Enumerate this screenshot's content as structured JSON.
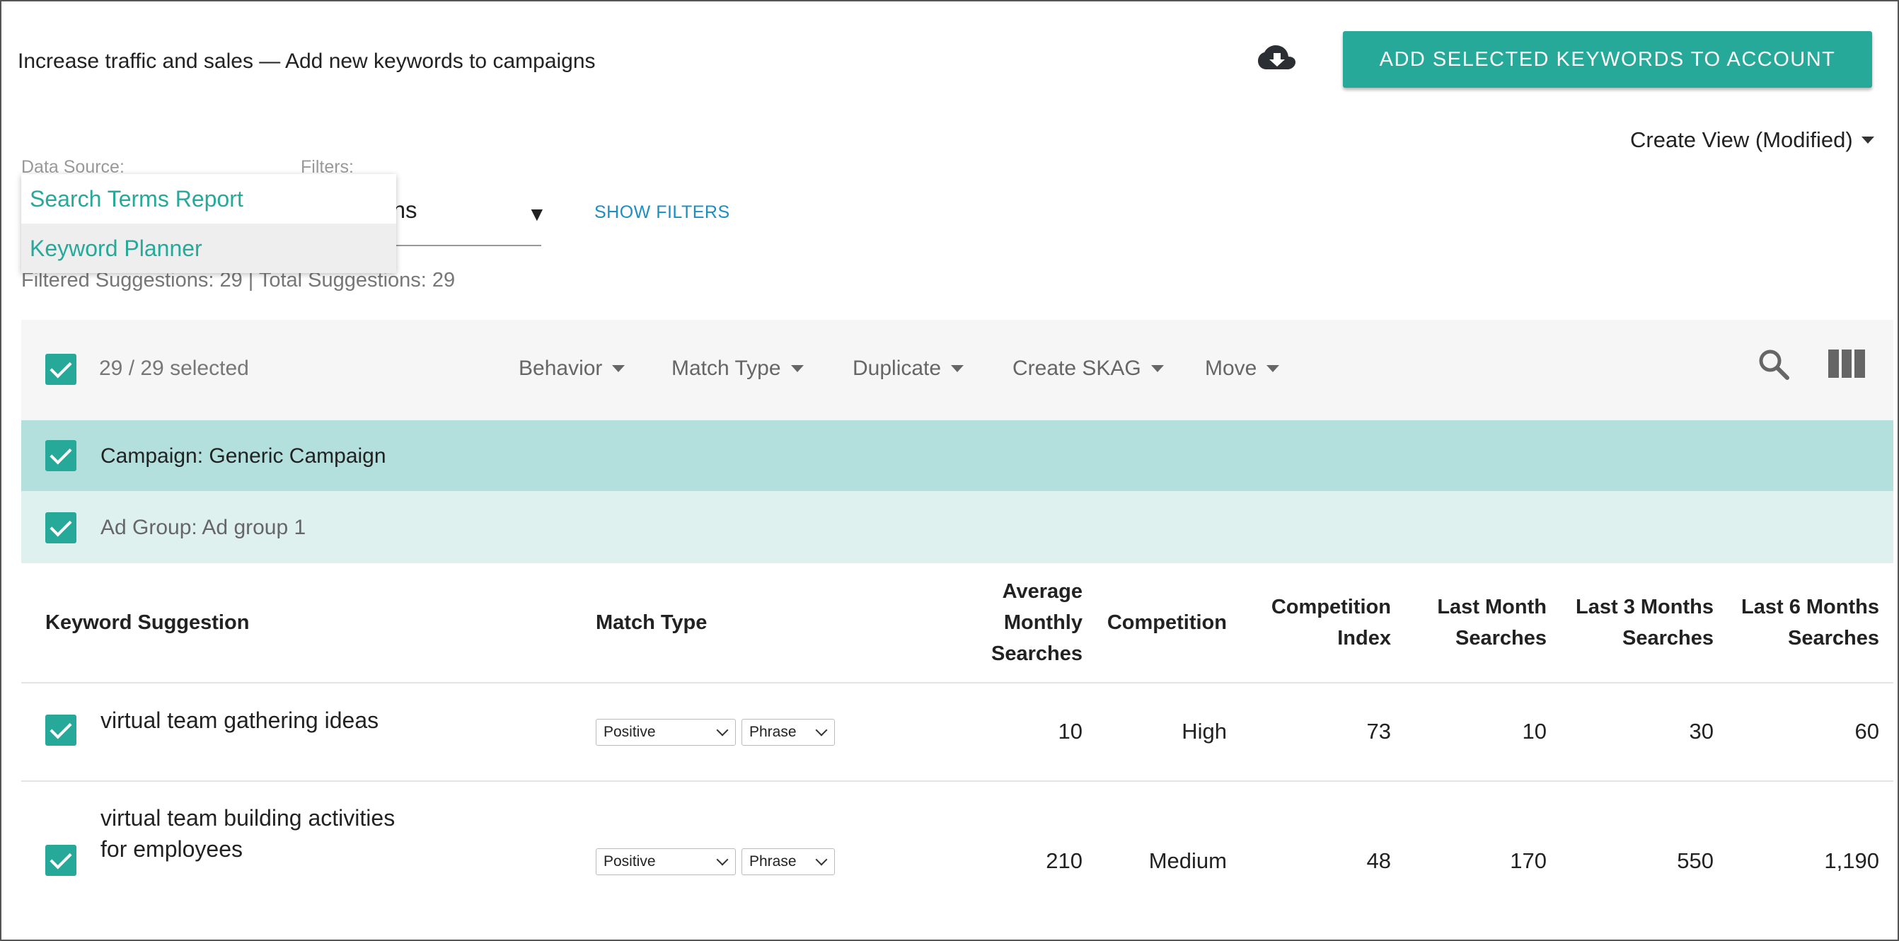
{
  "header": {
    "title": "Increase traffic and sales — Add new keywords to campaigns",
    "download_icon": "cloud-download-icon",
    "add_button_label": "ADD SELECTED KEYWORDS TO ACCOUNT",
    "create_view_label": "Create View (Modified)"
  },
  "data_source": {
    "label": "Data Source:",
    "options": [
      "Search Terms Report",
      "Keyword Planner"
    ],
    "highlighted": "Keyword Planner"
  },
  "filters": {
    "label": "Filters:",
    "value_visible": "estions",
    "show_filters_label": "SHOW FILTERS"
  },
  "counts_text": "Filtered Suggestions: 29 | Total Suggestions: 29",
  "toolbar": {
    "selected_text": "29 / 29 selected",
    "menus": [
      "Behavior",
      "Match Type",
      "Duplicate",
      "Create SKAG",
      "Move"
    ],
    "search_icon": "search-icon",
    "columns_icon": "columns-icon"
  },
  "campaign_label": "Campaign: Generic Campaign",
  "ad_group_label": "Ad Group: Ad group 1",
  "table": {
    "headers": {
      "keyword": "Keyword Suggestion",
      "match_type": "Match Type",
      "avg_1": "Average",
      "avg_2": "Monthly",
      "avg_3": "Searches",
      "competition": "Competition",
      "ci_1": "Competition",
      "ci_2": "Index",
      "lm_1": "Last Month",
      "lm_2": "Searches",
      "l3_1": "Last 3 Months",
      "l3_2": "Searches",
      "l6_1": "Last 6 Months",
      "l6_2": "Searches"
    },
    "rows": [
      {
        "keyword_line1": "virtual team gathering ideas",
        "keyword_line2": "",
        "behavior": "Positive",
        "match": "Phrase",
        "avg": "10",
        "competition": "High",
        "ci": "73",
        "last_month": "10",
        "last_3": "30",
        "last_6": "60"
      },
      {
        "keyword_line1": "virtual team building activities",
        "keyword_line2": "for employees",
        "behavior": "Positive",
        "match": "Phrase",
        "avg": "210",
        "competition": "Medium",
        "ci": "48",
        "last_month": "170",
        "last_3": "550",
        "last_6": "1,190"
      }
    ]
  },
  "colors": {
    "accent": "#27a99a",
    "campaign_bg": "#b3e0dd",
    "group_bg": "#dff1ef",
    "link": "#1a8fc4"
  }
}
